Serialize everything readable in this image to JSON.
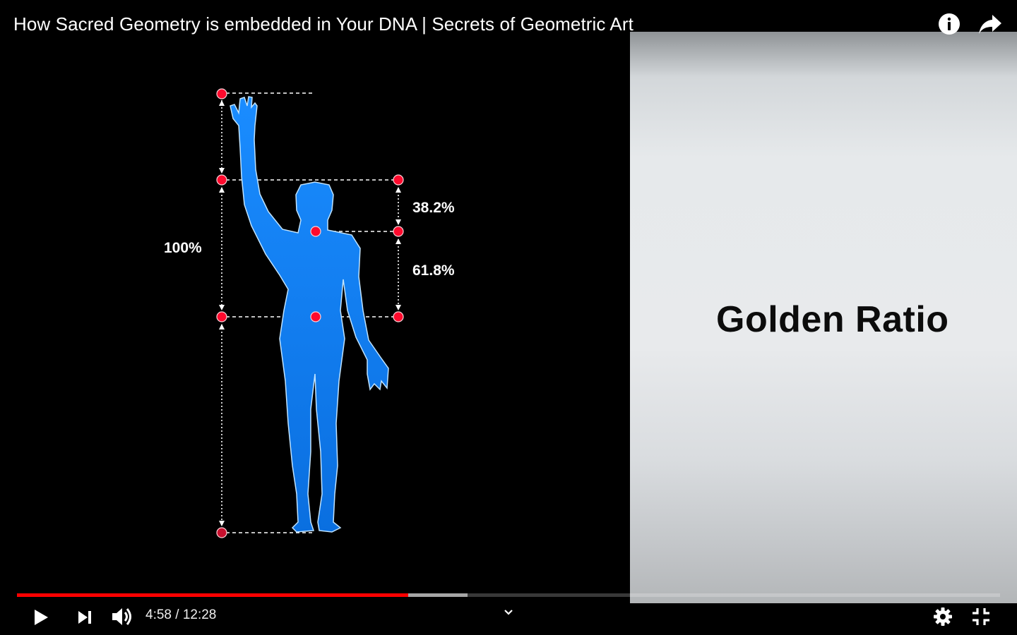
{
  "video": {
    "title": "How Sacred Geometry is embedded in Your DNA | Secrets of Geometric Art"
  },
  "top_controls": {
    "info_icon": "info-icon",
    "share_icon": "share-icon"
  },
  "diagram": {
    "label_total": "100%",
    "label_upper": "38.2%",
    "label_lower": "61.8%",
    "figure_color": "#1e90ff",
    "marker_color": "#ff0a2d"
  },
  "panel": {
    "heading": "Golden Ratio"
  },
  "player": {
    "current_time": "4:58",
    "separator": " / ",
    "duration": "12:28",
    "played_fraction": 0.398,
    "buffered_fraction": 0.458,
    "accent_color": "#ff0000"
  },
  "bottom_controls": {
    "play_icon": "play-icon",
    "next_icon": "next-icon",
    "volume_icon": "volume-icon",
    "chevron_icon": "chevron-down-icon",
    "settings_icon": "gear-icon",
    "exit_fullscreen_icon": "exit-fullscreen-icon"
  }
}
